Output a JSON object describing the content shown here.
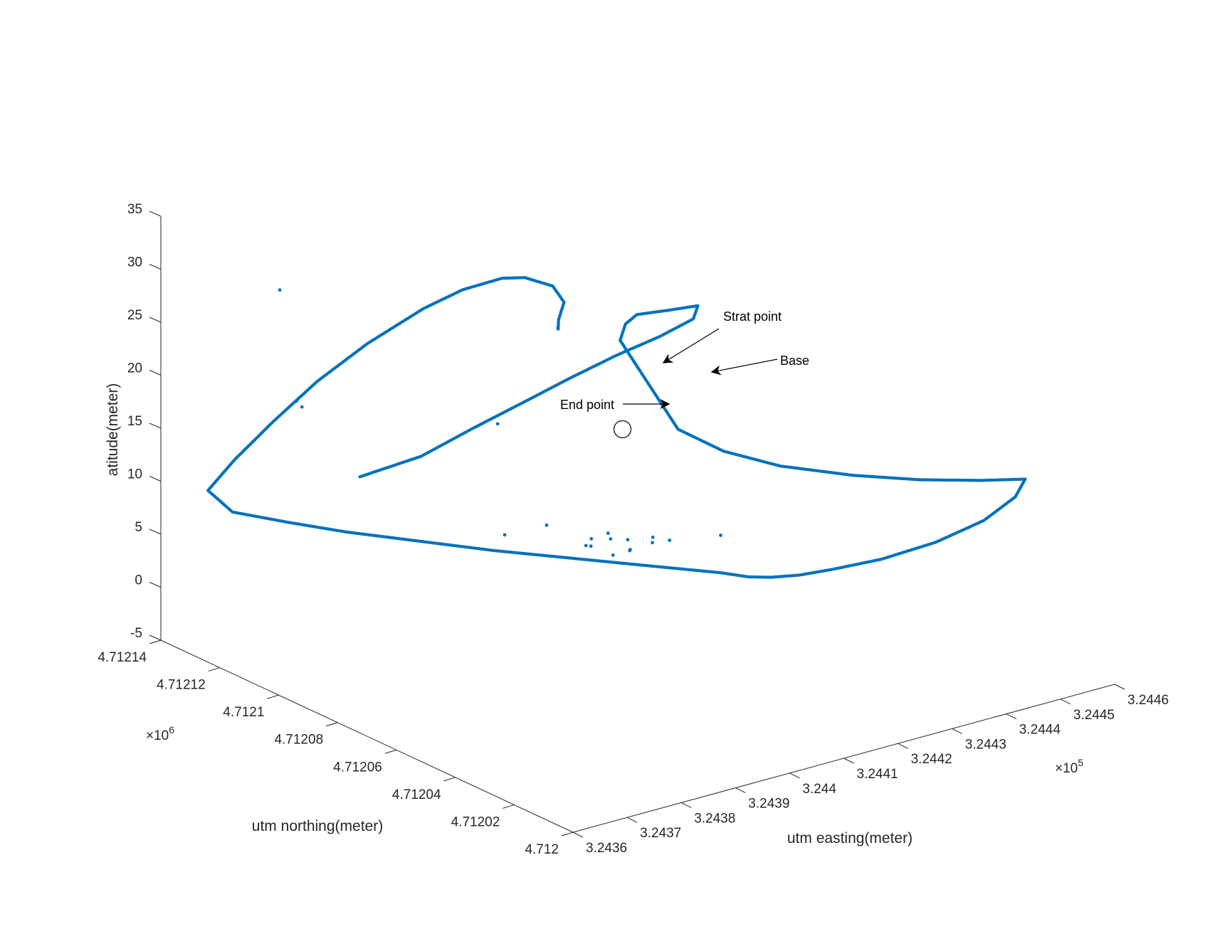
{
  "chart_data": {
    "type": "scatter",
    "title": "",
    "marker_color": "#0072BD",
    "axes": {
      "x": {
        "label": "utm easting(meter)",
        "exponent_label": "×10",
        "exponent_power": "5",
        "ticks": [
          "3.2436",
          "3.2437",
          "3.2438",
          "3.2439",
          "3.244",
          "3.2441",
          "3.2442",
          "3.2443",
          "3.2444",
          "3.2445",
          "3.2446"
        ],
        "range": [
          324360,
          324460
        ]
      },
      "y": {
        "label": "utm northing(meter)",
        "exponent_label": "×10",
        "exponent_power": "6",
        "ticks": [
          "4.712",
          "4.71202",
          "4.71204",
          "4.71206",
          "4.71208",
          "4.7121",
          "4.71212",
          "4.71214"
        ],
        "range": [
          4712000,
          4712140
        ]
      },
      "z": {
        "label": "atitude(meter)",
        "ticks": [
          "-5",
          "0",
          "5",
          "10",
          "15",
          "20",
          "25",
          "30",
          "35"
        ],
        "range": [
          -5,
          35
        ]
      }
    },
    "series": [
      {
        "marker": "dot",
        "path_x": [
          324375,
          324382,
          324388,
          324395,
          324400,
          324406,
          324412,
          324417,
          324420,
          324416,
          324412,
          324411,
          324410,
          324412,
          324415,
          324420,
          324428,
          324436,
          324444,
          324450,
          324446,
          324438,
          324428,
          324418,
          324410,
          324405,
          324402,
          324400,
          324398,
          324392,
          324385,
          324378,
          324372,
          324366,
          324362,
          324358,
          324360,
          324366,
          324372,
          324378,
          324384,
          324390,
          324394,
          324398,
          324400,
          324403,
          324404,
          324403,
          324404,
          324406
        ],
        "path_y": [
          4712100,
          4712092,
          4712086,
          4712080,
          4712075,
          4712070,
          4712066,
          4712064,
          4712068,
          4712070,
          4712074,
          4712076,
          4712076,
          4712060,
          4712050,
          4712040,
          4712030,
          4712022,
          4712016,
          4712012,
          4712008,
          4712004,
          4712002,
          4712002,
          4712004,
          4712006,
          4712010,
          4712014,
          4712020,
          4712032,
          4712046,
          4712060,
          4712074,
          4712088,
          4712100,
          4712112,
          4712124,
          4712126,
          4712124,
          4712120,
          4712114,
          4712106,
          4712100,
          4712094,
          4712090,
          4712086,
          4712084,
          4712084,
          4712086,
          4712090
        ],
        "path_z": [
          13.5,
          15.5,
          18.0,
          20.5,
          22.5,
          24.5,
          26.0,
          27.2,
          27.5,
          27.4,
          27.0,
          26.0,
          24.6,
          18.0,
          16.8,
          16.0,
          15.3,
          14.8,
          14.4,
          14.2,
          13.6,
          13.0,
          12.6,
          12.4,
          12.3,
          12.2,
          11.9,
          11.7,
          11.6,
          11.5,
          11.4,
          11.3,
          11.2,
          11.1,
          11.0,
          11.0,
          11.2,
          13.0,
          16.0,
          19.5,
          23.0,
          26.5,
          28.5,
          29.8,
          30.1,
          29.4,
          28.0,
          26.5,
          25.2,
          24.6
        ],
        "outliers": [
          {
            "x": 324380,
            "y": 4712060,
            "z": 12.5
          },
          {
            "x": 324395,
            "y": 4712090,
            "z": 17.0
          },
          {
            "x": 324370,
            "y": 4712118,
            "z": 29.5
          },
          {
            "x": 324372,
            "y": 4712116,
            "z": 19.0
          },
          {
            "x": 324373,
            "y": 4712116,
            "z": 18.3
          },
          {
            "x": 324395,
            "y": 4712060,
            "z": 9.4
          },
          {
            "x": 324399,
            "y": 4712059,
            "z": 9.6
          },
          {
            "x": 324400,
            "y": 4712055,
            "z": 9.9
          },
          {
            "x": 324403,
            "y": 4712052,
            "z": 10.1
          },
          {
            "x": 324405,
            "y": 4712050,
            "z": 9.8
          },
          {
            "x": 324404,
            "y": 4712054,
            "z": 9.2
          },
          {
            "x": 324401,
            "y": 4712056,
            "z": 8.7
          },
          {
            "x": 324402,
            "y": 4712058,
            "z": 8.2
          },
          {
            "x": 324400,
            "y": 4712060,
            "z": 7.8
          },
          {
            "x": 324397,
            "y": 4712062,
            "z": 8.8
          },
          {
            "x": 324396,
            "y": 4712060,
            "z": 9.9
          },
          {
            "x": 324398,
            "y": 4712058,
            "z": 10.4
          },
          {
            "x": 324409,
            "y": 4712040,
            "z": 11.0
          },
          {
            "x": 324391,
            "y": 4712066,
            "z": 11.1
          }
        ]
      }
    ],
    "base_point": {
      "x": 324405,
      "y": 4712066,
      "z": 18.2
    },
    "annotations": [
      {
        "text": "Strat point",
        "x": 324412,
        "y": 4712076,
        "z": 24.6
      },
      {
        "text": "Base",
        "x": 324405,
        "y": 4712066,
        "z": 18.2
      },
      {
        "text": "End point",
        "x": 324406,
        "y": 4712090,
        "z": 24.6
      }
    ],
    "grid": false,
    "legend": "none"
  }
}
